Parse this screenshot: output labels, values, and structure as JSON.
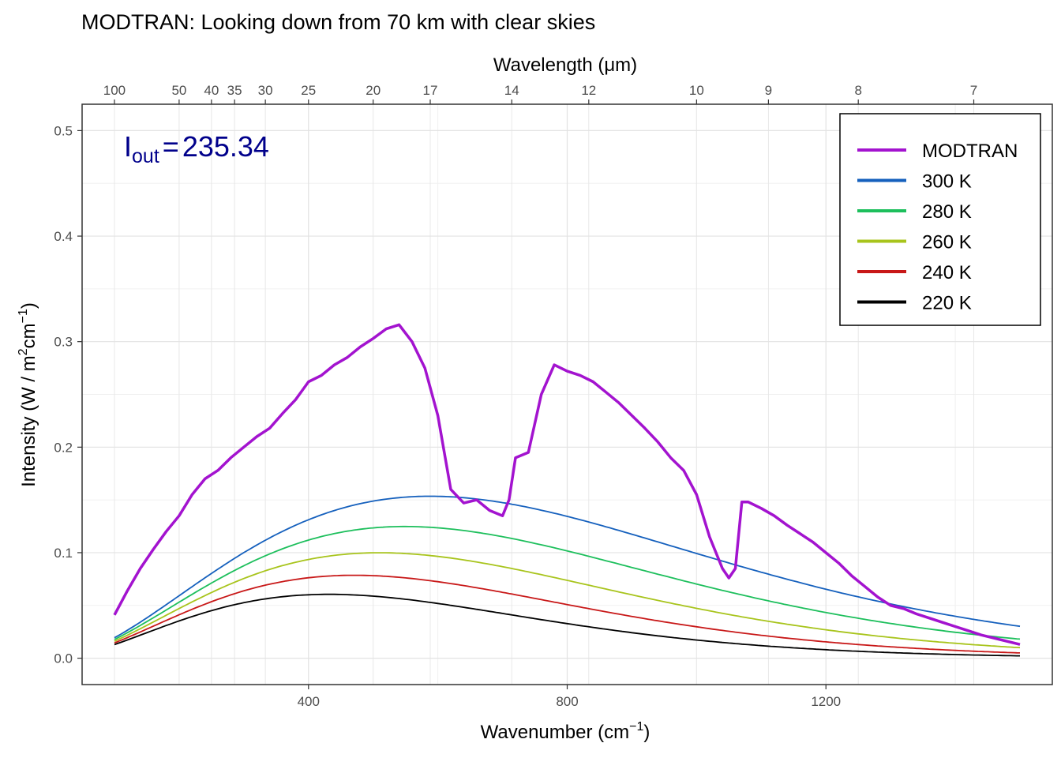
{
  "chart_data": {
    "type": "line",
    "title": "MODTRAN: Looking down from 70 km with clear skies",
    "xlabel": "Wavenumber (cm",
    "xlabel_sup": "−1",
    "xlabel_end": ")",
    "ylabel": "Intensity (W / m",
    "ylabel_sup1": "2",
    "ylabel_mid": "cm",
    "ylabel_sup2": "−1",
    "ylabel_end": ")",
    "secondary_xlabel": "Wavelength (μm)",
    "xlim": [
      50,
      1550
    ],
    "ylim": [
      -0.025,
      0.525
    ],
    "x_ticks": [
      400,
      800,
      1200
    ],
    "y_ticks": [
      0.0,
      0.1,
      0.2,
      0.3,
      0.4,
      0.5
    ],
    "x_tick_labels": [
      "400",
      "800",
      "1200"
    ],
    "y_tick_labels": [
      "0.0",
      "0.1",
      "0.2",
      "0.3",
      "0.4",
      "0.5"
    ],
    "top_ticks": [
      100,
      50,
      40,
      35,
      30,
      25,
      20,
      17,
      14,
      12,
      10,
      9,
      8,
      7
    ],
    "top_tick_labels": [
      "100",
      "50",
      "40",
      "35",
      "30",
      "25",
      "20",
      "17",
      "14",
      "12",
      "10",
      "9",
      "8",
      "7"
    ],
    "grid": true,
    "legend_position": "top-right",
    "annotation": {
      "base": "I",
      "sub": "out",
      "eq": "=",
      "value": "235.34"
    },
    "planck_temperatures": [
      300,
      280,
      260,
      240,
      220
    ],
    "series": [
      {
        "name": "MODTRAN",
        "color": "#a313cf",
        "x": [
          100,
          120,
          140,
          160,
          180,
          200,
          220,
          240,
          260,
          280,
          300,
          320,
          340,
          360,
          380,
          400,
          420,
          440,
          460,
          480,
          500,
          520,
          540,
          560,
          580,
          600,
          620,
          640,
          660,
          680,
          700,
          710,
          720,
          740,
          760,
          780,
          800,
          820,
          840,
          860,
          880,
          900,
          920,
          940,
          960,
          980,
          1000,
          1020,
          1040,
          1050,
          1060,
          1070,
          1080,
          1100,
          1120,
          1140,
          1160,
          1180,
          1200,
          1220,
          1240,
          1260,
          1280,
          1300,
          1320,
          1340,
          1360,
          1380,
          1400,
          1420,
          1440,
          1460,
          1480,
          1500
        ],
        "y": [
          0.041,
          0.064,
          0.085,
          0.103,
          0.12,
          0.135,
          0.155,
          0.17,
          0.178,
          0.19,
          0.2,
          0.21,
          0.218,
          0.232,
          0.245,
          0.262,
          0.268,
          0.278,
          0.285,
          0.295,
          0.303,
          0.312,
          0.316,
          0.3,
          0.275,
          0.23,
          0.16,
          0.147,
          0.15,
          0.14,
          0.135,
          0.15,
          0.19,
          0.195,
          0.25,
          0.278,
          0.272,
          0.268,
          0.262,
          0.252,
          0.242,
          0.23,
          0.218,
          0.205,
          0.19,
          0.178,
          0.155,
          0.115,
          0.085,
          0.076,
          0.085,
          0.148,
          0.148,
          0.142,
          0.135,
          0.126,
          0.118,
          0.11,
          0.1,
          0.09,
          0.078,
          0.068,
          0.058,
          0.05,
          0.047,
          0.042,
          0.038,
          0.034,
          0.03,
          0.026,
          0.022,
          0.019,
          0.016,
          0.013
        ]
      },
      {
        "name": "300 K",
        "color": "#1560bd",
        "temperature": 300
      },
      {
        "name": "280 K",
        "color": "#1dbf5c",
        "temperature": 280
      },
      {
        "name": "260 K",
        "color": "#a8c41c",
        "temperature": 260
      },
      {
        "name": "240 K",
        "color": "#c81818",
        "temperature": 240
      },
      {
        "name": "220 K",
        "color": "#000000",
        "temperature": 220
      }
    ]
  }
}
